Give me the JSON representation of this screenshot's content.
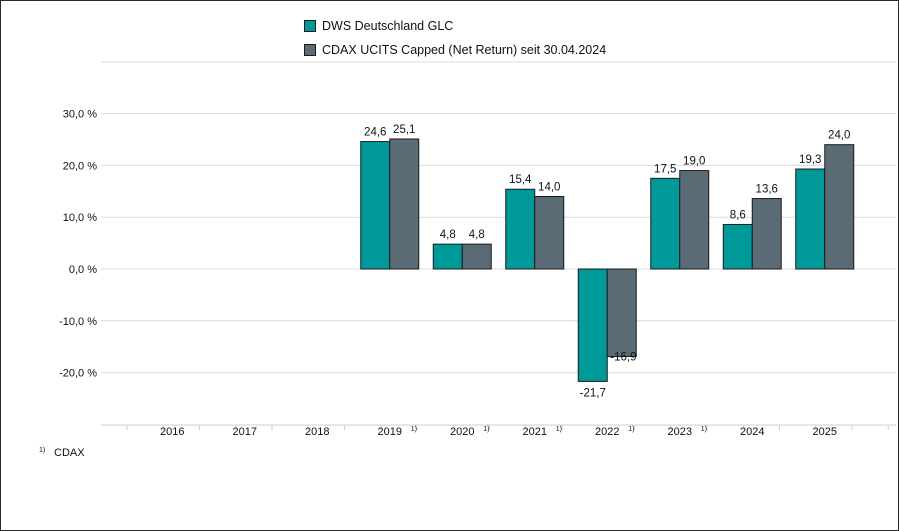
{
  "chart_data": {
    "type": "bar",
    "categories": [
      "2016",
      "2017",
      "2018",
      "2019",
      "2020",
      "2021",
      "2022",
      "2023",
      "2024",
      "2025"
    ],
    "category_footnotes": [
      "",
      "",
      "",
      "1)",
      "1)",
      "1)",
      "1)",
      "1)",
      "",
      ""
    ],
    "series": [
      {
        "name": "DWS Deutschland GLC",
        "color": "#00999a",
        "values": [
          null,
          null,
          null,
          24.6,
          4.8,
          15.4,
          -21.7,
          17.5,
          8.6,
          19.3
        ],
        "labels": [
          "",
          "",
          "",
          "24,6",
          "4,8",
          "15,4",
          "-21,7",
          "17,5",
          "8,6",
          "19,3"
        ]
      },
      {
        "name": "CDAX UCITS Capped (Net Return) seit 30.04.2024",
        "color": "#5b6b75",
        "values": [
          null,
          null,
          null,
          25.1,
          4.8,
          14.0,
          -16.9,
          19.0,
          13.6,
          24.0
        ],
        "labels": [
          "",
          "",
          "",
          "25,1",
          "4,8",
          "14,0",
          "-16,9",
          "19,0",
          "13,6",
          "24,0"
        ]
      }
    ],
    "yticks": [
      30,
      20,
      10,
      0,
      -10,
      -20
    ],
    "ytick_labels": [
      "30,0 %",
      "20,0 %",
      "10,0 %",
      "0,0 %",
      "-10,0 %",
      "-20,0 %"
    ],
    "ylim": [
      -27,
      40
    ],
    "grid": true,
    "legend_position": "top-center",
    "footnote": {
      "marker": "1)",
      "text": "CDAX"
    }
  }
}
